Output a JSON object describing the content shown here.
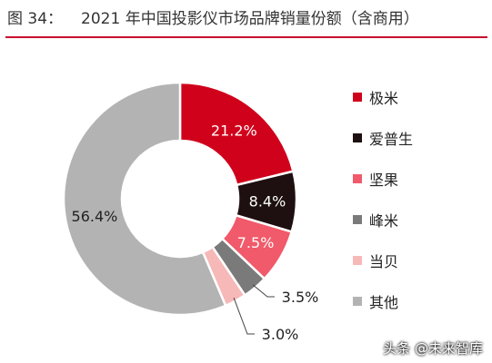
{
  "figure": {
    "label": "图 34：",
    "title": "2021 年中国投影仪市场品牌销量份额（含商用）"
  },
  "chart_data": {
    "type": "pie",
    "donut": true,
    "categories": [
      "极米",
      "爱普生",
      "坚果",
      "峰米",
      "当贝",
      "其他"
    ],
    "values": [
      21.2,
      8.4,
      7.5,
      3.5,
      3.0,
      56.4
    ],
    "value_labels": [
      "21.2%",
      "8.4%",
      "7.5%",
      "3.5%",
      "3.0%",
      "56.4%"
    ],
    "colors": [
      "#d0021b",
      "#1e1010",
      "#f05a6a",
      "#7a7a7a",
      "#f7b8b8",
      "#b3b3b3"
    ],
    "legend_position": "right"
  },
  "watermark": "头条 @未来智库"
}
